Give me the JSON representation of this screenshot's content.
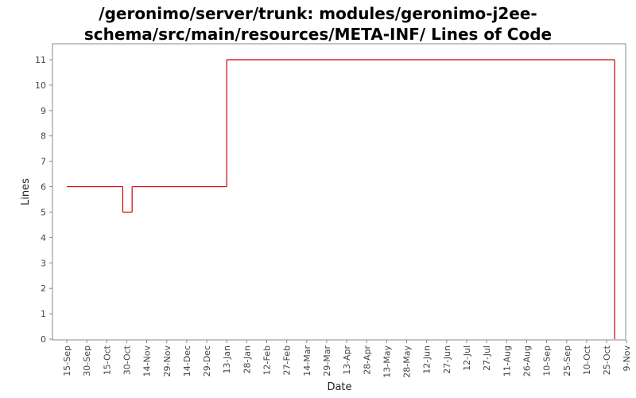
{
  "chart_data": {
    "type": "line",
    "title_lines": [
      "/geronimo/server/trunk: modules/geronimo-j2ee-",
      "schema/src/main/resources/META-INF/ Lines of Code"
    ],
    "xlabel": "Date",
    "ylabel": "Lines",
    "ylim": [
      0,
      11.5
    ],
    "yticks": [
      0,
      1,
      2,
      3,
      4,
      5,
      6,
      7,
      8,
      9,
      10,
      11
    ],
    "x_tick_labels": [
      "15-Sep",
      "30-Sep",
      "15-Oct",
      "30-Oct",
      "14-Nov",
      "29-Nov",
      "14-Dec",
      "29-Dec",
      "13-Jan",
      "28-Jan",
      "12-Feb",
      "27-Feb",
      "14-Mar",
      "29-Mar",
      "13-Apr",
      "28-Apr",
      "13-May",
      "28-May",
      "12-Jun",
      "27-Jun",
      "12-Jul",
      "27-Jul",
      "11-Aug",
      "26-Aug",
      "10-Sep",
      "25-Sep",
      "10-Oct",
      "25-Oct",
      "9-Nov"
    ],
    "series_color": "#cc0000",
    "series": [
      {
        "step": true,
        "points": [
          [
            "15-Sep",
            6
          ],
          [
            "27-Oct",
            6
          ],
          [
            "27-Oct",
            5
          ],
          [
            "3-Nov",
            5
          ],
          [
            "3-Nov",
            6
          ],
          [
            "13-Jan",
            6
          ],
          [
            "13-Jan",
            11
          ],
          [
            "31-Oct",
            11
          ],
          [
            "31-Oct",
            0
          ]
        ]
      }
    ],
    "grid": false
  }
}
